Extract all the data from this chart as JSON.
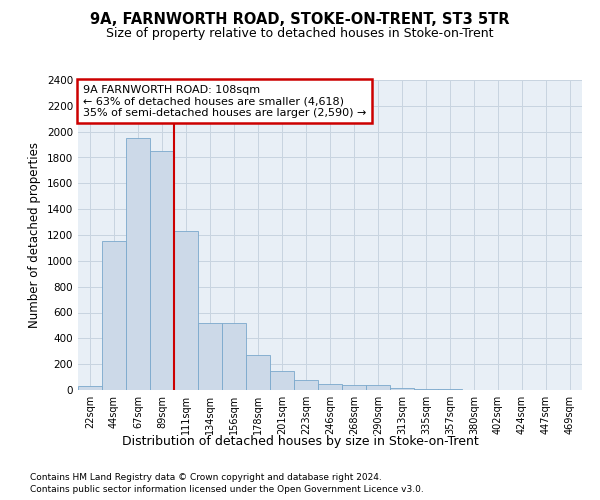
{
  "title": "9A, FARNWORTH ROAD, STOKE-ON-TRENT, ST3 5TR",
  "subtitle": "Size of property relative to detached houses in Stoke-on-Trent",
  "xlabel": "Distribution of detached houses by size in Stoke-on-Trent",
  "ylabel": "Number of detached properties",
  "footnote1": "Contains HM Land Registry data © Crown copyright and database right 2024.",
  "footnote2": "Contains public sector information licensed under the Open Government Licence v3.0.",
  "bar_values": [
    30,
    1150,
    1950,
    1850,
    1230,
    520,
    520,
    270,
    150,
    75,
    50,
    40,
    35,
    15,
    10,
    5,
    3,
    3,
    2,
    2,
    2
  ],
  "bin_labels": [
    "22sqm",
    "44sqm",
    "67sqm",
    "89sqm",
    "111sqm",
    "134sqm",
    "156sqm",
    "178sqm",
    "201sqm",
    "223sqm",
    "246sqm",
    "268sqm",
    "290sqm",
    "313sqm",
    "335sqm",
    "357sqm",
    "380sqm",
    "402sqm",
    "424sqm",
    "447sqm",
    "469sqm"
  ],
  "bar_color": "#ccd9e8",
  "bar_edge_color": "#7aa8cc",
  "grid_color": "#c8d4e0",
  "background_color": "#ffffff",
  "axes_bg_color": "#e8eff6",
  "annotation_text": "9A FARNWORTH ROAD: 108sqm\n← 63% of detached houses are smaller (4,618)\n35% of semi-detached houses are larger (2,590) →",
  "annotation_box_color": "#ffffff",
  "annotation_box_edge": "#cc0000",
  "vline_color": "#cc0000",
  "vline_index": 4,
  "ylim": [
    0,
    2400
  ],
  "yticks": [
    0,
    200,
    400,
    600,
    800,
    1000,
    1200,
    1400,
    1600,
    1800,
    2000,
    2200,
    2400
  ]
}
